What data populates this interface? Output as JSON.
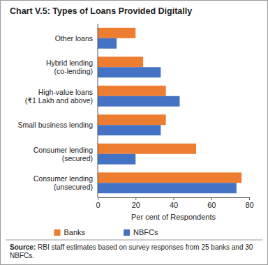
{
  "chart_data": {
    "type": "bar",
    "orientation": "horizontal",
    "title": "Chart V.5: Types of Loans Provided Digitally",
    "categories": [
      "Other loans",
      "Hybrid lending\n(co-lending)",
      "High-value loans\n(₹1 Lakh and above)",
      "Small business lending",
      "Consumer lending\n(secured)",
      "Consumer lending\n(unsecured)"
    ],
    "series": [
      {
        "name": "Banks",
        "color": "#ED7D31",
        "values": [
          20,
          24,
          36,
          36,
          52,
          76
        ]
      },
      {
        "name": "NBFCs",
        "color": "#4472C4",
        "values": [
          10,
          33.3,
          43.3,
          33.3,
          20,
          73.3
        ]
      }
    ],
    "x_label": "Per cent of Respondents",
    "xlim": [
      0,
      80
    ],
    "xticks": [
      0,
      20,
      40,
      60,
      80
    ],
    "grid": false,
    "legend": "bottom",
    "source": "Source: RBI staff estimates based on survey responses from 25 banks and 30 NBFCs."
  }
}
